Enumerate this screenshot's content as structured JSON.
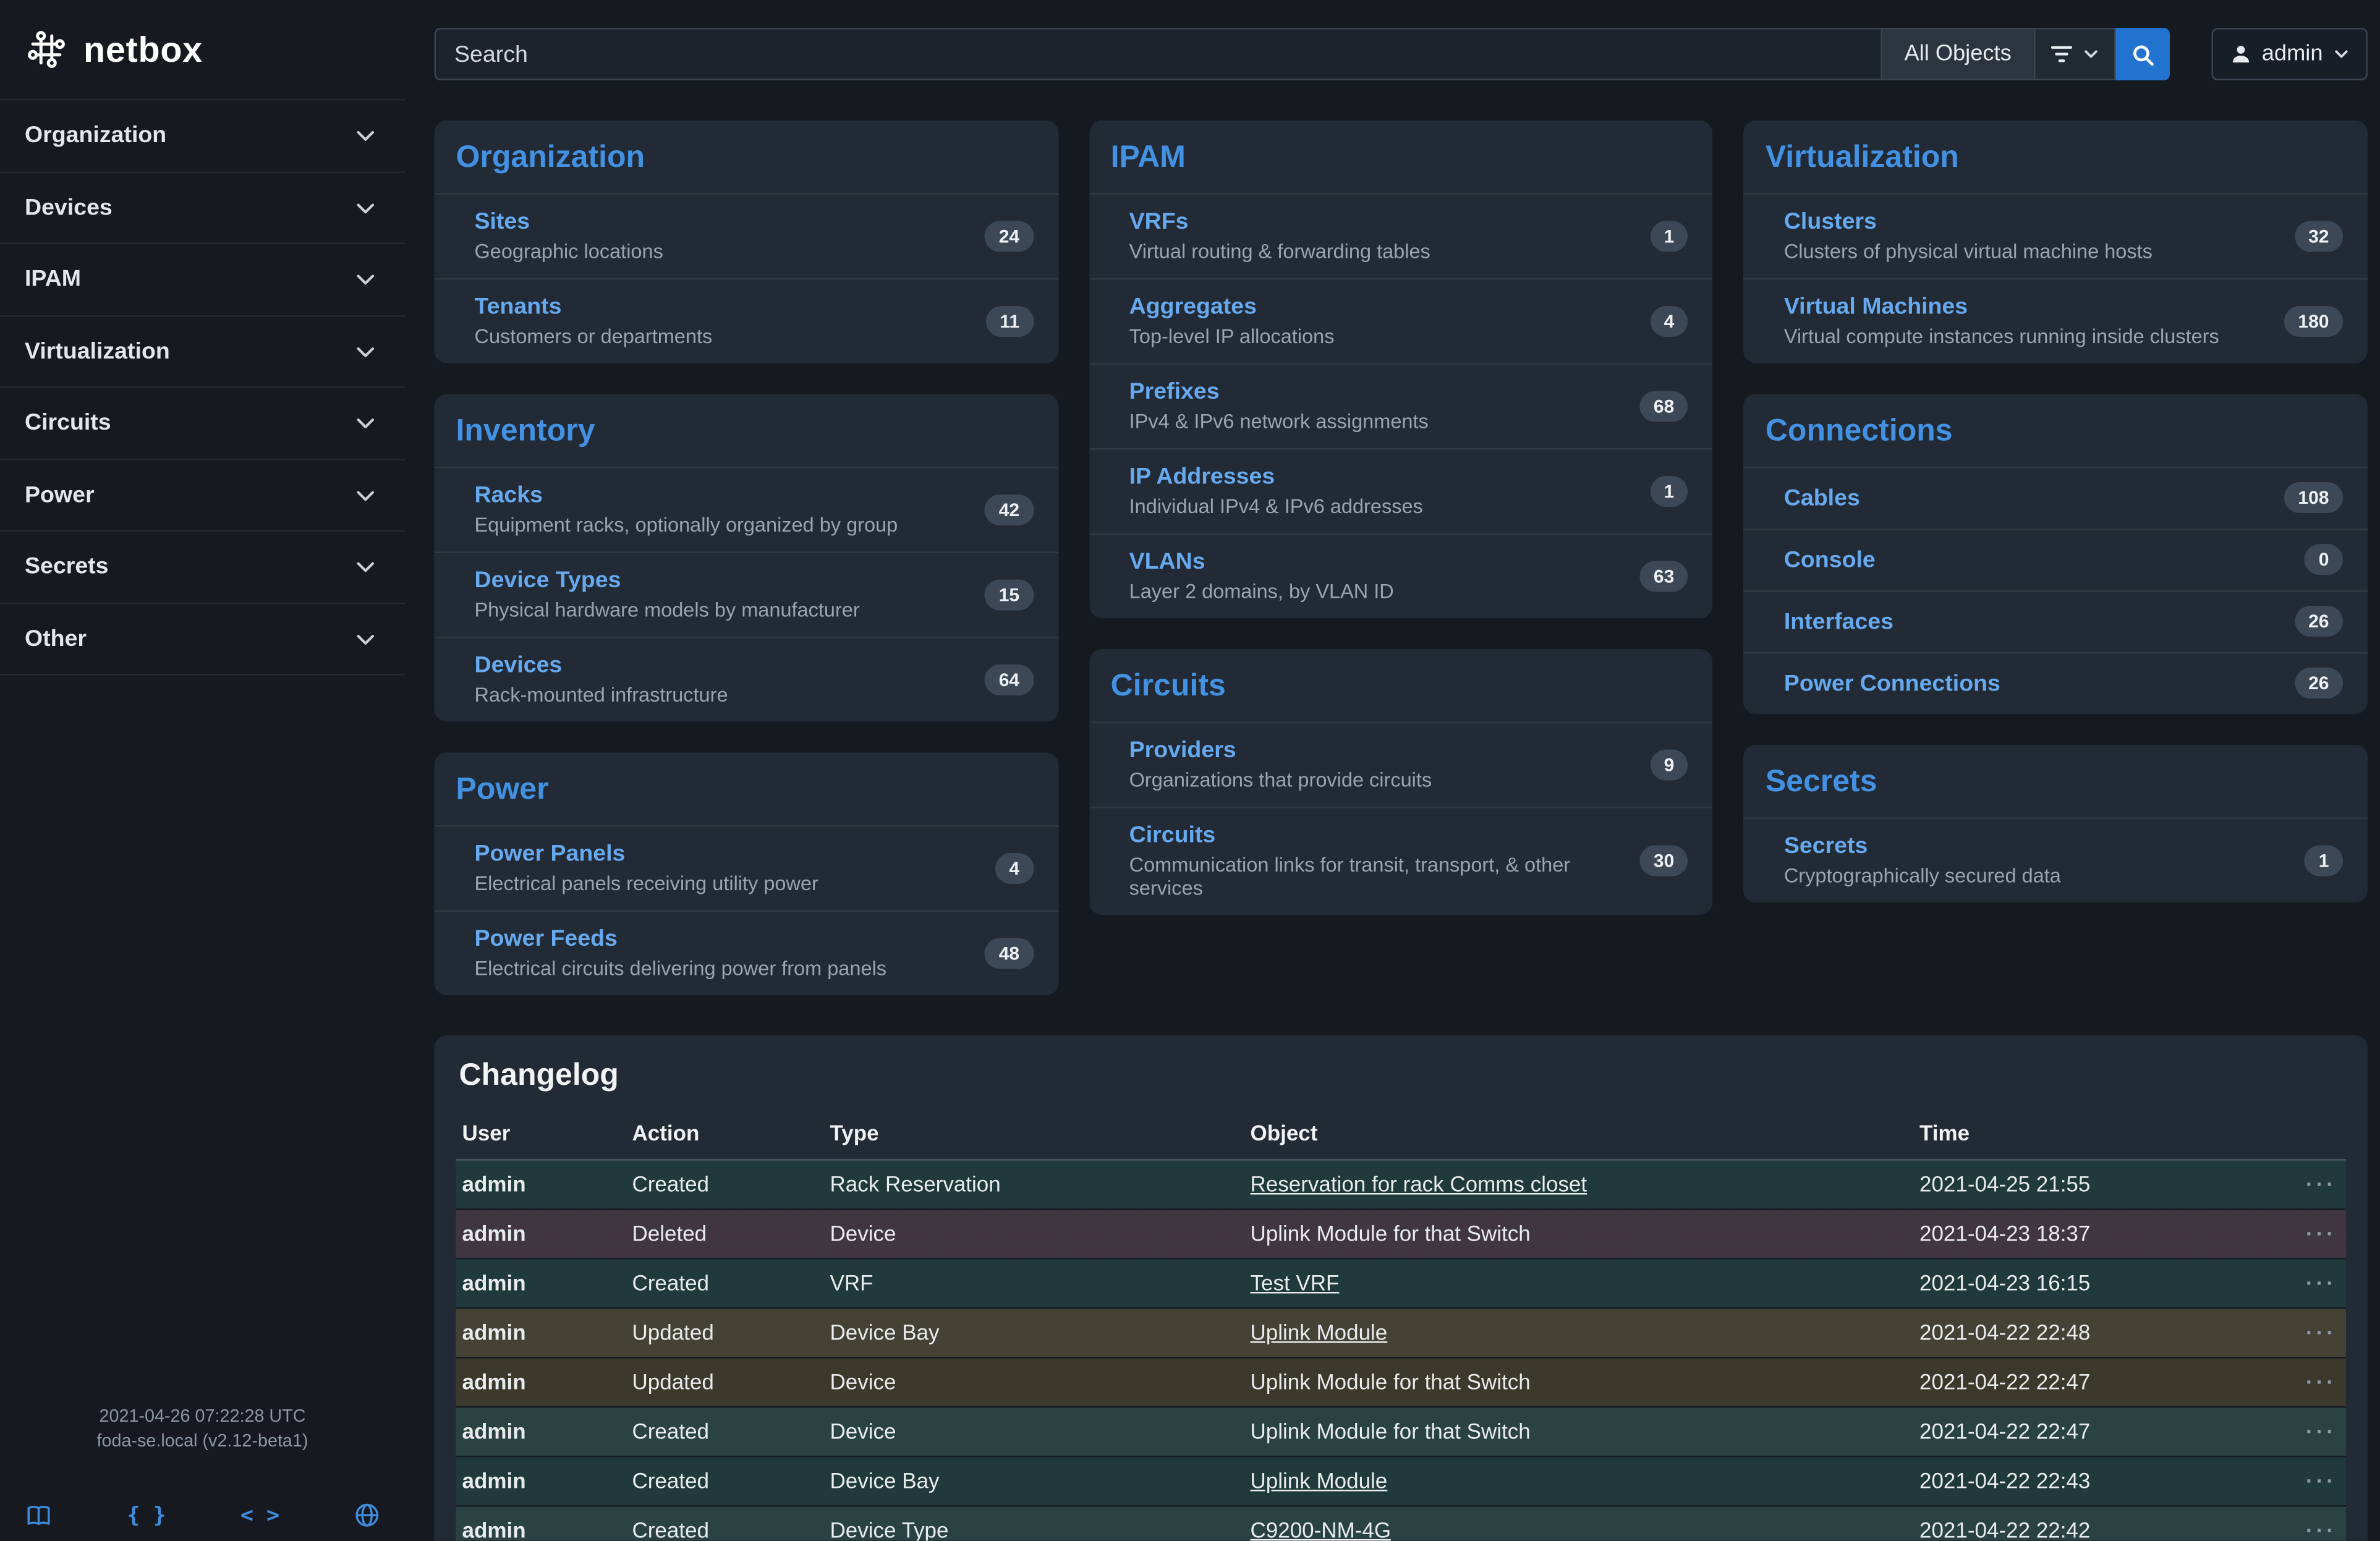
{
  "colors": {
    "accent_blue": "#3e8cdd",
    "row_created": "#20393a",
    "row_deleted": "#382d38",
    "row_updated": "#3b392b"
  },
  "brand": {
    "name": "netbox"
  },
  "sidebar": {
    "items": [
      {
        "label": "Organization"
      },
      {
        "label": "Devices"
      },
      {
        "label": "IPAM"
      },
      {
        "label": "Virtualization"
      },
      {
        "label": "Circuits"
      },
      {
        "label": "Power"
      },
      {
        "label": "Secrets"
      },
      {
        "label": "Other"
      }
    ],
    "footer": {
      "timestamp": "2021-04-26 07:22:28 UTC",
      "host": "foda-se.local (v2.12-beta1)",
      "braces_glyph": "{ }",
      "code_glyph": "< >"
    }
  },
  "topbar": {
    "search_placeholder": "Search",
    "scope_button_label": "All Objects",
    "user_label": "admin"
  },
  "dashboard": {
    "columns": [
      {
        "cards": [
          {
            "title": "Organization",
            "items": [
              {
                "name": "Sites",
                "desc": "Geographic locations",
                "count": "24"
              },
              {
                "name": "Tenants",
                "desc": "Customers or departments",
                "count": "11"
              }
            ]
          },
          {
            "title": "Inventory",
            "items": [
              {
                "name": "Racks",
                "desc": "Equipment racks, optionally organized by group",
                "count": "42"
              },
              {
                "name": "Device Types",
                "desc": "Physical hardware models by manufacturer",
                "count": "15"
              },
              {
                "name": "Devices",
                "desc": "Rack-mounted infrastructure",
                "count": "64"
              }
            ]
          },
          {
            "title": "Power",
            "items": [
              {
                "name": "Power Panels",
                "desc": "Electrical panels receiving utility power",
                "count": "4"
              },
              {
                "name": "Power Feeds",
                "desc": "Electrical circuits delivering power from panels",
                "count": "48"
              }
            ]
          }
        ]
      },
      {
        "cards": [
          {
            "title": "IPAM",
            "items": [
              {
                "name": "VRFs",
                "desc": "Virtual routing & forwarding tables",
                "count": "1"
              },
              {
                "name": "Aggregates",
                "desc": "Top-level IP allocations",
                "count": "4"
              },
              {
                "name": "Prefixes",
                "desc": "IPv4 & IPv6 network assignments",
                "count": "68"
              },
              {
                "name": "IP Addresses",
                "desc": "Individual IPv4 & IPv6 addresses",
                "count": "1"
              },
              {
                "name": "VLANs",
                "desc": "Layer 2 domains, by VLAN ID",
                "count": "63"
              }
            ]
          },
          {
            "title": "Circuits",
            "items": [
              {
                "name": "Providers",
                "desc": "Organizations that provide circuits",
                "count": "9"
              },
              {
                "name": "Circuits",
                "desc": "Communication links for transit, transport, & other services",
                "count": "30"
              }
            ]
          }
        ]
      },
      {
        "cards": [
          {
            "title": "Virtualization",
            "items": [
              {
                "name": "Clusters",
                "desc": "Clusters of physical virtual machine hosts",
                "count": "32"
              },
              {
                "name": "Virtual Machines",
                "desc": "Virtual compute instances running inside clusters",
                "count": "180"
              }
            ]
          },
          {
            "title": "Connections",
            "items": [
              {
                "name": "Cables",
                "count": "108"
              },
              {
                "name": "Console",
                "count": "0"
              },
              {
                "name": "Interfaces",
                "count": "26"
              },
              {
                "name": "Power Connections",
                "count": "26"
              }
            ]
          },
          {
            "title": "Secrets",
            "items": [
              {
                "name": "Secrets",
                "desc": "Cryptographically secured data",
                "count": "1"
              }
            ]
          }
        ]
      }
    ]
  },
  "changelog": {
    "title": "Changelog",
    "columns": [
      "User",
      "Action",
      "Type",
      "Object",
      "Time"
    ],
    "rows": [
      {
        "user": "admin",
        "action": "Created",
        "type": "Rack Reservation",
        "object": "Reservation for rack Comms closet",
        "link": true,
        "time": "2021-04-25 21:55"
      },
      {
        "user": "admin",
        "action": "Deleted",
        "type": "Device",
        "object": "Uplink Module for that Switch",
        "link": false,
        "time": "2021-04-23 18:37"
      },
      {
        "user": "admin",
        "action": "Created",
        "type": "VRF",
        "object": "Test VRF",
        "link": true,
        "time": "2021-04-23 16:15"
      },
      {
        "user": "admin",
        "action": "Updated",
        "type": "Device Bay",
        "object": "Uplink Module",
        "link": true,
        "time": "2021-04-22 22:48"
      },
      {
        "user": "admin",
        "action": "Updated",
        "type": "Device",
        "object": "Uplink Module for that Switch",
        "link": false,
        "time": "2021-04-22 22:47"
      },
      {
        "user": "admin",
        "action": "Created",
        "type": "Device",
        "object": "Uplink Module for that Switch",
        "link": false,
        "time": "2021-04-22 22:47"
      },
      {
        "user": "admin",
        "action": "Created",
        "type": "Device Bay",
        "object": "Uplink Module",
        "link": true,
        "time": "2021-04-22 22:43"
      },
      {
        "user": "admin",
        "action": "Created",
        "type": "Device Type",
        "object": "C9200-NM-4G",
        "link": true,
        "time": "2021-04-22 22:42"
      }
    ]
  }
}
